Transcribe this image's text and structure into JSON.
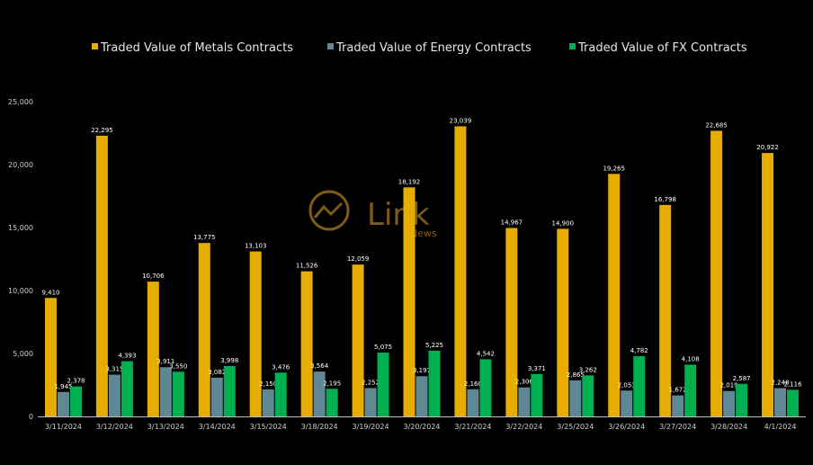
{
  "chart_data": {
    "type": "bar",
    "ylim": [
      0,
      25000
    ],
    "yticks": [
      "0",
      "5,000",
      "10,000",
      "15,000",
      "20,000",
      "25,000"
    ],
    "ytick_values": [
      0,
      5000,
      10000,
      15000,
      20000,
      25000
    ],
    "categories": [
      "3/11/2024",
      "3/12/2024",
      "3/13/2024",
      "3/14/2024",
      "3/15/2024",
      "3/18/2024",
      "3/19/2024",
      "3/20/2024",
      "3/21/2024",
      "3/22/2024",
      "3/25/2024",
      "3/26/2024",
      "3/27/2024",
      "3/28/2024",
      "4/1/2024"
    ],
    "series": [
      {
        "name": "Traded Value of Metals Contracts",
        "color": "#e6ac00",
        "values": [
          9410,
          22295,
          10706,
          13775,
          13103,
          11526,
          12059,
          18192,
          23039,
          14967,
          14900,
          19265,
          16798,
          22685,
          20922
        ],
        "labels": [
          "9,410",
          "22,295",
          "10,706",
          "13,775",
          "13,103",
          "11,526",
          "12,059",
          "18,192",
          "23,039",
          "14,967",
          "14,900",
          "19,265",
          "16,798",
          "22,685",
          "20,922"
        ]
      },
      {
        "name": "Traded Value of Energy Contracts",
        "color": "#5f8794",
        "values": [
          1945,
          3315,
          3911,
          3082,
          2150,
          3564,
          2252,
          3197,
          2160,
          2306,
          2865,
          2053,
          1672,
          2019,
          2248
        ],
        "labels": [
          "1,945",
          "3,315",
          "3,911",
          "3,082",
          "2,150",
          "3,564",
          "2,252",
          "3,197",
          "2,160",
          "2,306",
          "2,865",
          "2,053",
          "1,672",
          "2,019",
          "2,248"
        ]
      },
      {
        "name": "Traded Value of FX Contracts",
        "color": "#00b050",
        "values": [
          2378,
          4393,
          3550,
          3998,
          3476,
          2195,
          5075,
          5225,
          4542,
          3371,
          3262,
          4782,
          4108,
          2587,
          2116
        ],
        "labels": [
          "2,378",
          "4,393",
          "3,550",
          "3,998",
          "3,476",
          "2,195",
          "5,075",
          "5,225",
          "4,542",
          "3,371",
          "3,262",
          "4,782",
          "4,108",
          "2,587",
          "2,116"
        ]
      }
    ],
    "legend_position": "top",
    "grid": false
  },
  "watermark": {
    "brand": "Link",
    "sub": "News"
  }
}
